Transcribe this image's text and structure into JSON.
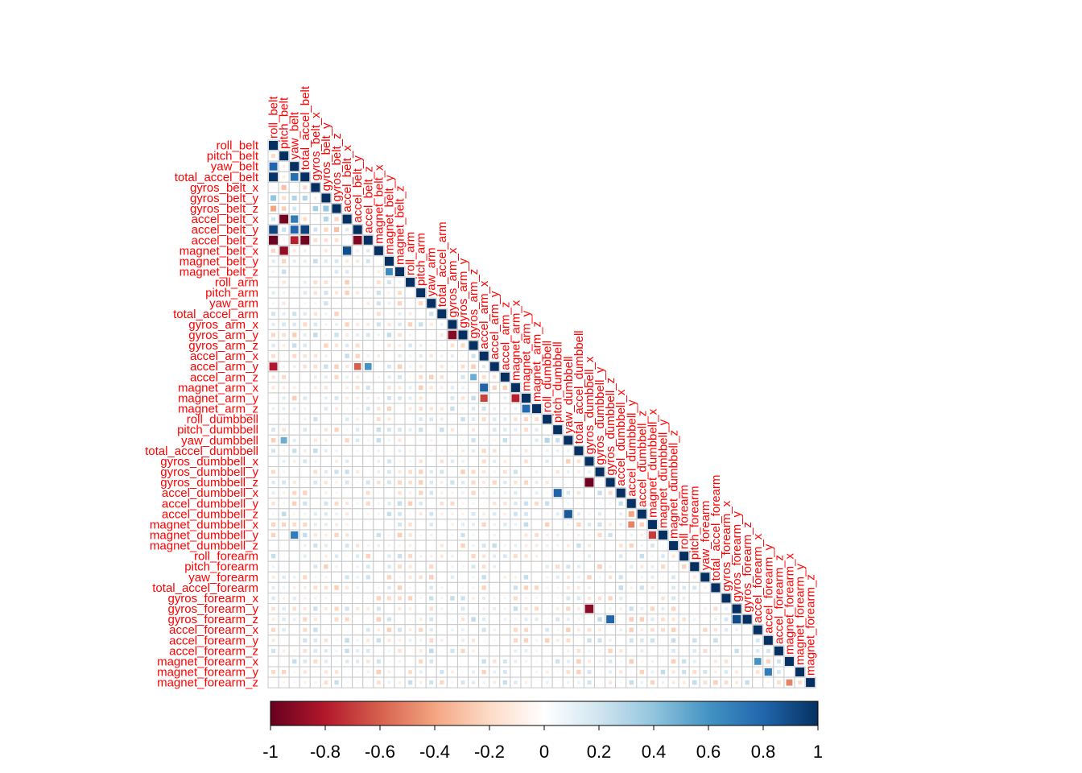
{
  "chart_data": {
    "type": "heatmap",
    "subtype": "correlation-matrix-lower",
    "variables": [
      "roll_belt",
      "pitch_belt",
      "yaw_belt",
      "total_accel_belt",
      "gyros_belt_x",
      "gyros_belt_y",
      "gyros_belt_z",
      "accel_belt_x",
      "accel_belt_y",
      "accel_belt_z",
      "magnet_belt_x",
      "magnet_belt_y",
      "magnet_belt_z",
      "roll_arm",
      "pitch_arm",
      "yaw_arm",
      "total_accel_arm",
      "gyros_arm_x",
      "gyros_arm_y",
      "gyros_arm_z",
      "accel_arm_x",
      "accel_arm_y",
      "accel_arm_z",
      "magnet_arm_x",
      "magnet_arm_y",
      "magnet_arm_z",
      "roll_dumbbell",
      "pitch_dumbbell",
      "yaw_dumbbell",
      "total_accel_dumbbell",
      "gyros_dumbbell_x",
      "gyros_dumbbell_y",
      "gyros_dumbbell_z",
      "accel_dumbbell_x",
      "accel_dumbbell_y",
      "accel_dumbbell_z",
      "magnet_dumbbell_x",
      "magnet_dumbbell_y",
      "magnet_dumbbell_z",
      "roll_forearm",
      "pitch_forearm",
      "yaw_forearm",
      "total_accel_forearm",
      "gyros_forearm_x",
      "gyros_forearm_y",
      "gyros_forearm_z",
      "accel_forearm_x",
      "accel_forearm_y",
      "accel_forearm_z",
      "magnet_forearm_x",
      "magnet_forearm_y",
      "magnet_forearm_z"
    ],
    "notable_correlations": [
      {
        "a": "pitch_belt",
        "b": "roll_belt",
        "v": -0.2
      },
      {
        "a": "yaw_belt",
        "b": "roll_belt",
        "v": 0.8
      },
      {
        "a": "yaw_belt",
        "b": "pitch_belt",
        "v": -0.1
      },
      {
        "a": "total_accel_belt",
        "b": "roll_belt",
        "v": 0.98
      },
      {
        "a": "total_accel_belt",
        "b": "pitch_belt",
        "v": -0.1
      },
      {
        "a": "total_accel_belt",
        "b": "yaw_belt",
        "v": 0.76
      },
      {
        "a": "gyros_belt_x",
        "b": "pitch_belt",
        "v": -0.3
      },
      {
        "a": "gyros_belt_y",
        "b": "roll_belt",
        "v": 0.4
      },
      {
        "a": "gyros_belt_y",
        "b": "yaw_belt",
        "v": 0.3
      },
      {
        "a": "gyros_belt_y",
        "b": "total_accel_belt",
        "v": 0.3
      },
      {
        "a": "gyros_belt_z",
        "b": "roll_belt",
        "v": -0.4
      },
      {
        "a": "gyros_belt_z",
        "b": "gyros_belt_x",
        "v": 0.33
      },
      {
        "a": "gyros_belt_z",
        "b": "gyros_belt_y",
        "v": 0.4
      },
      {
        "a": "accel_belt_x",
        "b": "pitch_belt",
        "v": -0.97
      },
      {
        "a": "accel_belt_x",
        "b": "yaw_belt",
        "v": 0.7
      },
      {
        "a": "accel_belt_x",
        "b": "gyros_belt_y",
        "v": 0.3
      },
      {
        "a": "accel_belt_y",
        "b": "roll_belt",
        "v": 0.92
      },
      {
        "a": "accel_belt_y",
        "b": "yaw_belt",
        "v": 0.8
      },
      {
        "a": "accel_belt_y",
        "b": "total_accel_belt",
        "v": 0.93
      },
      {
        "a": "accel_belt_y",
        "b": "gyros_belt_z",
        "v": -0.3
      },
      {
        "a": "accel_belt_z",
        "b": "roll_belt",
        "v": -0.99
      },
      {
        "a": "accel_belt_z",
        "b": "yaw_belt",
        "v": -0.78
      },
      {
        "a": "accel_belt_z",
        "b": "total_accel_belt",
        "v": -0.97
      },
      {
        "a": "accel_belt_z",
        "b": "accel_belt_y",
        "v": -0.93
      },
      {
        "a": "magnet_belt_x",
        "b": "pitch_belt",
        "v": -0.88
      },
      {
        "a": "magnet_belt_x",
        "b": "accel_belt_x",
        "v": 0.89
      },
      {
        "a": "magnet_belt_z",
        "b": "magnet_belt_y",
        "v": 0.64
      },
      {
        "a": "accel_arm_y",
        "b": "roll_belt",
        "v": -0.8
      },
      {
        "a": "accel_arm_y",
        "b": "accel_belt_y",
        "v": -0.6
      },
      {
        "a": "accel_arm_y",
        "b": "accel_belt_z",
        "v": 0.6
      },
      {
        "a": "gyros_arm_y",
        "b": "gyros_arm_x",
        "v": -0.92
      },
      {
        "a": "accel_arm_z",
        "b": "gyros_arm_z",
        "v": 0.5
      },
      {
        "a": "magnet_arm_x",
        "b": "accel_arm_x",
        "v": 0.81
      },
      {
        "a": "magnet_arm_y",
        "b": "accel_arm_x",
        "v": -0.68
      },
      {
        "a": "magnet_arm_y",
        "b": "magnet_arm_x",
        "v": -0.78
      },
      {
        "a": "magnet_arm_z",
        "b": "magnet_arm_y",
        "v": 0.78
      },
      {
        "a": "yaw_dumbbell",
        "b": "pitch_belt",
        "v": 0.5
      },
      {
        "a": "yaw_dumbbell",
        "b": "roll_dumbbell",
        "v": 0.3
      },
      {
        "a": "gyros_dumbbell_z",
        "b": "gyros_dumbbell_x",
        "v": -0.98
      },
      {
        "a": "accel_dumbbell_x",
        "b": "pitch_dumbbell",
        "v": 0.81
      },
      {
        "a": "accel_dumbbell_z",
        "b": "yaw_dumbbell",
        "v": 0.85
      },
      {
        "a": "accel_dumbbell_z",
        "b": "accel_dumbbell_y",
        "v": -0.4
      },
      {
        "a": "magnet_dumbbell_x",
        "b": "accel_dumbbell_y",
        "v": -0.5
      },
      {
        "a": "magnet_dumbbell_y",
        "b": "magnet_dumbbell_x",
        "v": -0.7
      },
      {
        "a": "magnet_dumbbell_y",
        "b": "yaw_belt",
        "v": 0.7
      },
      {
        "a": "gyros_forearm_y",
        "b": "gyros_dumbbell_x",
        "v": -0.9
      },
      {
        "a": "gyros_forearm_z",
        "b": "gyros_dumbbell_z",
        "v": 0.8
      },
      {
        "a": "gyros_forearm_z",
        "b": "gyros_forearm_y",
        "v": 0.9
      },
      {
        "a": "magnet_forearm_x",
        "b": "accel_forearm_x",
        "v": 0.6
      },
      {
        "a": "magnet_forearm_y",
        "b": "accel_forearm_y",
        "v": 0.7
      },
      {
        "a": "magnet_forearm_z",
        "b": "magnet_forearm_x",
        "v": -0.5
      }
    ],
    "colorbar": {
      "ticks": [
        "-1",
        "-0.8",
        "-0.6",
        "-0.4",
        "-0.2",
        "0",
        "0.2",
        "0.4",
        "0.6",
        "0.8",
        "1"
      ],
      "range": [
        -1,
        1
      ],
      "colors": [
        "#67001F",
        "#B2182B",
        "#D6604D",
        "#F4A582",
        "#FDDBC7",
        "#FFFFFF",
        "#D1E5F0",
        "#92C5DE",
        "#4393C3",
        "#2166AC",
        "#053061"
      ]
    },
    "label_color": "#FF0000",
    "diagonal_value": 1
  }
}
